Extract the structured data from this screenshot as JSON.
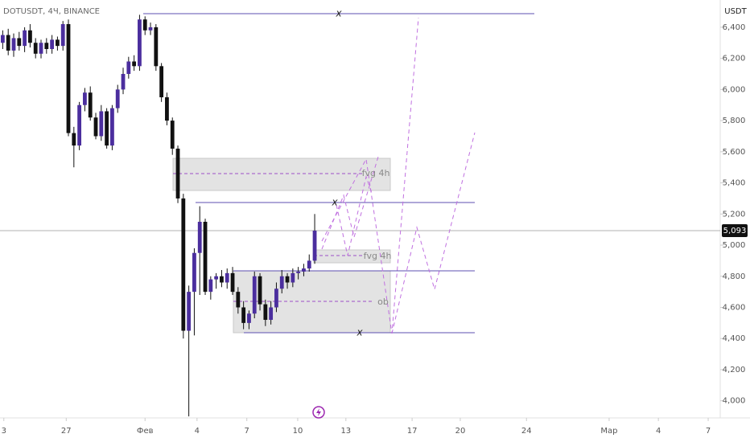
{
  "header": {
    "symbol": "DOTUSDT, 4Ч, BINANCE",
    "currency": "USDT"
  },
  "chart_data": {
    "type": "candlestick",
    "up_color": "#4b2e9e",
    "down_color": "#111111",
    "wick_color": "#111111",
    "ylim": [
      3890,
      6575
    ],
    "xlim": [
      0,
      131.6
    ],
    "yticks": [
      {
        "value": 4000,
        "label": "4,000"
      },
      {
        "value": 4200,
        "label": "4,200"
      },
      {
        "value": 4400,
        "label": "4,400"
      },
      {
        "value": 4600,
        "label": "4,600"
      },
      {
        "value": 4800,
        "label": "4,800"
      },
      {
        "value": 5000,
        "label": "5,000"
      },
      {
        "value": 5200,
        "label": "5,200"
      },
      {
        "value": 5400,
        "label": "5,400"
      },
      {
        "value": 5600,
        "label": "5,600"
      },
      {
        "value": 5800,
        "label": "5,800"
      },
      {
        "value": 6000,
        "label": "6,000"
      },
      {
        "value": 6200,
        "label": "6,200"
      },
      {
        "value": 6400,
        "label": "6,400"
      }
    ],
    "xticks": [
      {
        "value": 0.7,
        "label": "3"
      },
      {
        "value": 12.1,
        "label": "27"
      },
      {
        "value": 26.5,
        "label": "Фев"
      },
      {
        "value": 36,
        "label": "4"
      },
      {
        "value": 45.1,
        "label": "7"
      },
      {
        "value": 54.4,
        "label": "10"
      },
      {
        "value": 63.2,
        "label": "13"
      },
      {
        "value": 75.3,
        "label": "17"
      },
      {
        "value": 84.1,
        "label": "20"
      },
      {
        "value": 96.2,
        "label": "24"
      },
      {
        "value": 111.3,
        "label": "Мар"
      },
      {
        "value": 120.3,
        "label": "4"
      },
      {
        "value": 129.4,
        "label": "7"
      }
    ],
    "open": [
      6300,
      6350,
      6250,
      6330,
      6280,
      6380,
      6300,
      6230,
      6300,
      6260,
      6320,
      6280,
      6420,
      5720,
      5640,
      5900,
      5980,
      5820,
      5700,
      5860,
      5640,
      5880,
      6000,
      6100,
      6180,
      6150,
      6450,
      6380,
      6400,
      6150,
      5950,
      5800,
      5620,
      5300,
      4450,
      4700,
      4950,
      5150,
      4700,
      4780,
      4800,
      4760,
      4820,
      4700,
      4600,
      4500,
      4560,
      4800,
      4620,
      4520,
      4600,
      4720,
      4800,
      4760,
      4820,
      4830,
      4850,
      4900
    ],
    "high": [
      6380,
      6390,
      6360,
      6370,
      6400,
      6420,
      6330,
      6320,
      6330,
      6350,
      6340,
      6440,
      6450,
      5760,
      5920,
      6010,
      6020,
      5850,
      5900,
      5880,
      5900,
      6030,
      6140,
      6210,
      6220,
      6480,
      6470,
      6430,
      6420,
      6170,
      5980,
      5820,
      5640,
      5330,
      4740,
      4980,
      5250,
      5170,
      4800,
      4820,
      4840,
      4850,
      4860,
      4730,
      4640,
      4580,
      4830,
      4820,
      4650,
      4640,
      4760,
      4840,
      4820,
      4850,
      4860,
      4880,
      4940,
      5200
    ],
    "low": [
      6260,
      6220,
      6210,
      6250,
      6240,
      6270,
      6200,
      6200,
      6230,
      6230,
      6250,
      6250,
      5700,
      5500,
      5610,
      5860,
      5800,
      5680,
      5670,
      5620,
      5610,
      5850,
      5970,
      6070,
      6120,
      6120,
      6350,
      6350,
      6120,
      5920,
      5770,
      5580,
      5270,
      4400,
      3900,
      4420,
      4680,
      4680,
      4650,
      4720,
      4730,
      4720,
      4680,
      4560,
      4460,
      4460,
      4530,
      4580,
      4480,
      4490,
      4570,
      4690,
      4720,
      4730,
      4780,
      4800,
      4830,
      4880
    ],
    "close": [
      6350,
      6250,
      6330,
      6280,
      6380,
      6300,
      6230,
      6300,
      6260,
      6320,
      6280,
      6420,
      5720,
      5640,
      5900,
      5980,
      5820,
      5700,
      5860,
      5640,
      5880,
      6000,
      6100,
      6180,
      6150,
      6450,
      6380,
      6400,
      6150,
      5950,
      5800,
      5620,
      5300,
      4450,
      4700,
      4950,
      5150,
      4700,
      4780,
      4800,
      4760,
      4820,
      4700,
      4600,
      4500,
      4560,
      4800,
      4620,
      4520,
      4600,
      4720,
      4800,
      4760,
      4820,
      4830,
      4850,
      4900,
      5093
    ],
    "last_price": {
      "value": 5093,
      "label": "5,093"
    }
  },
  "annotations": {
    "top_x": "x",
    "fvg_upper": "fvg 4h",
    "mid_x": "x",
    "fvg_lower": "fvg 4h",
    "ob": "ob",
    "bottom_x": "x"
  }
}
